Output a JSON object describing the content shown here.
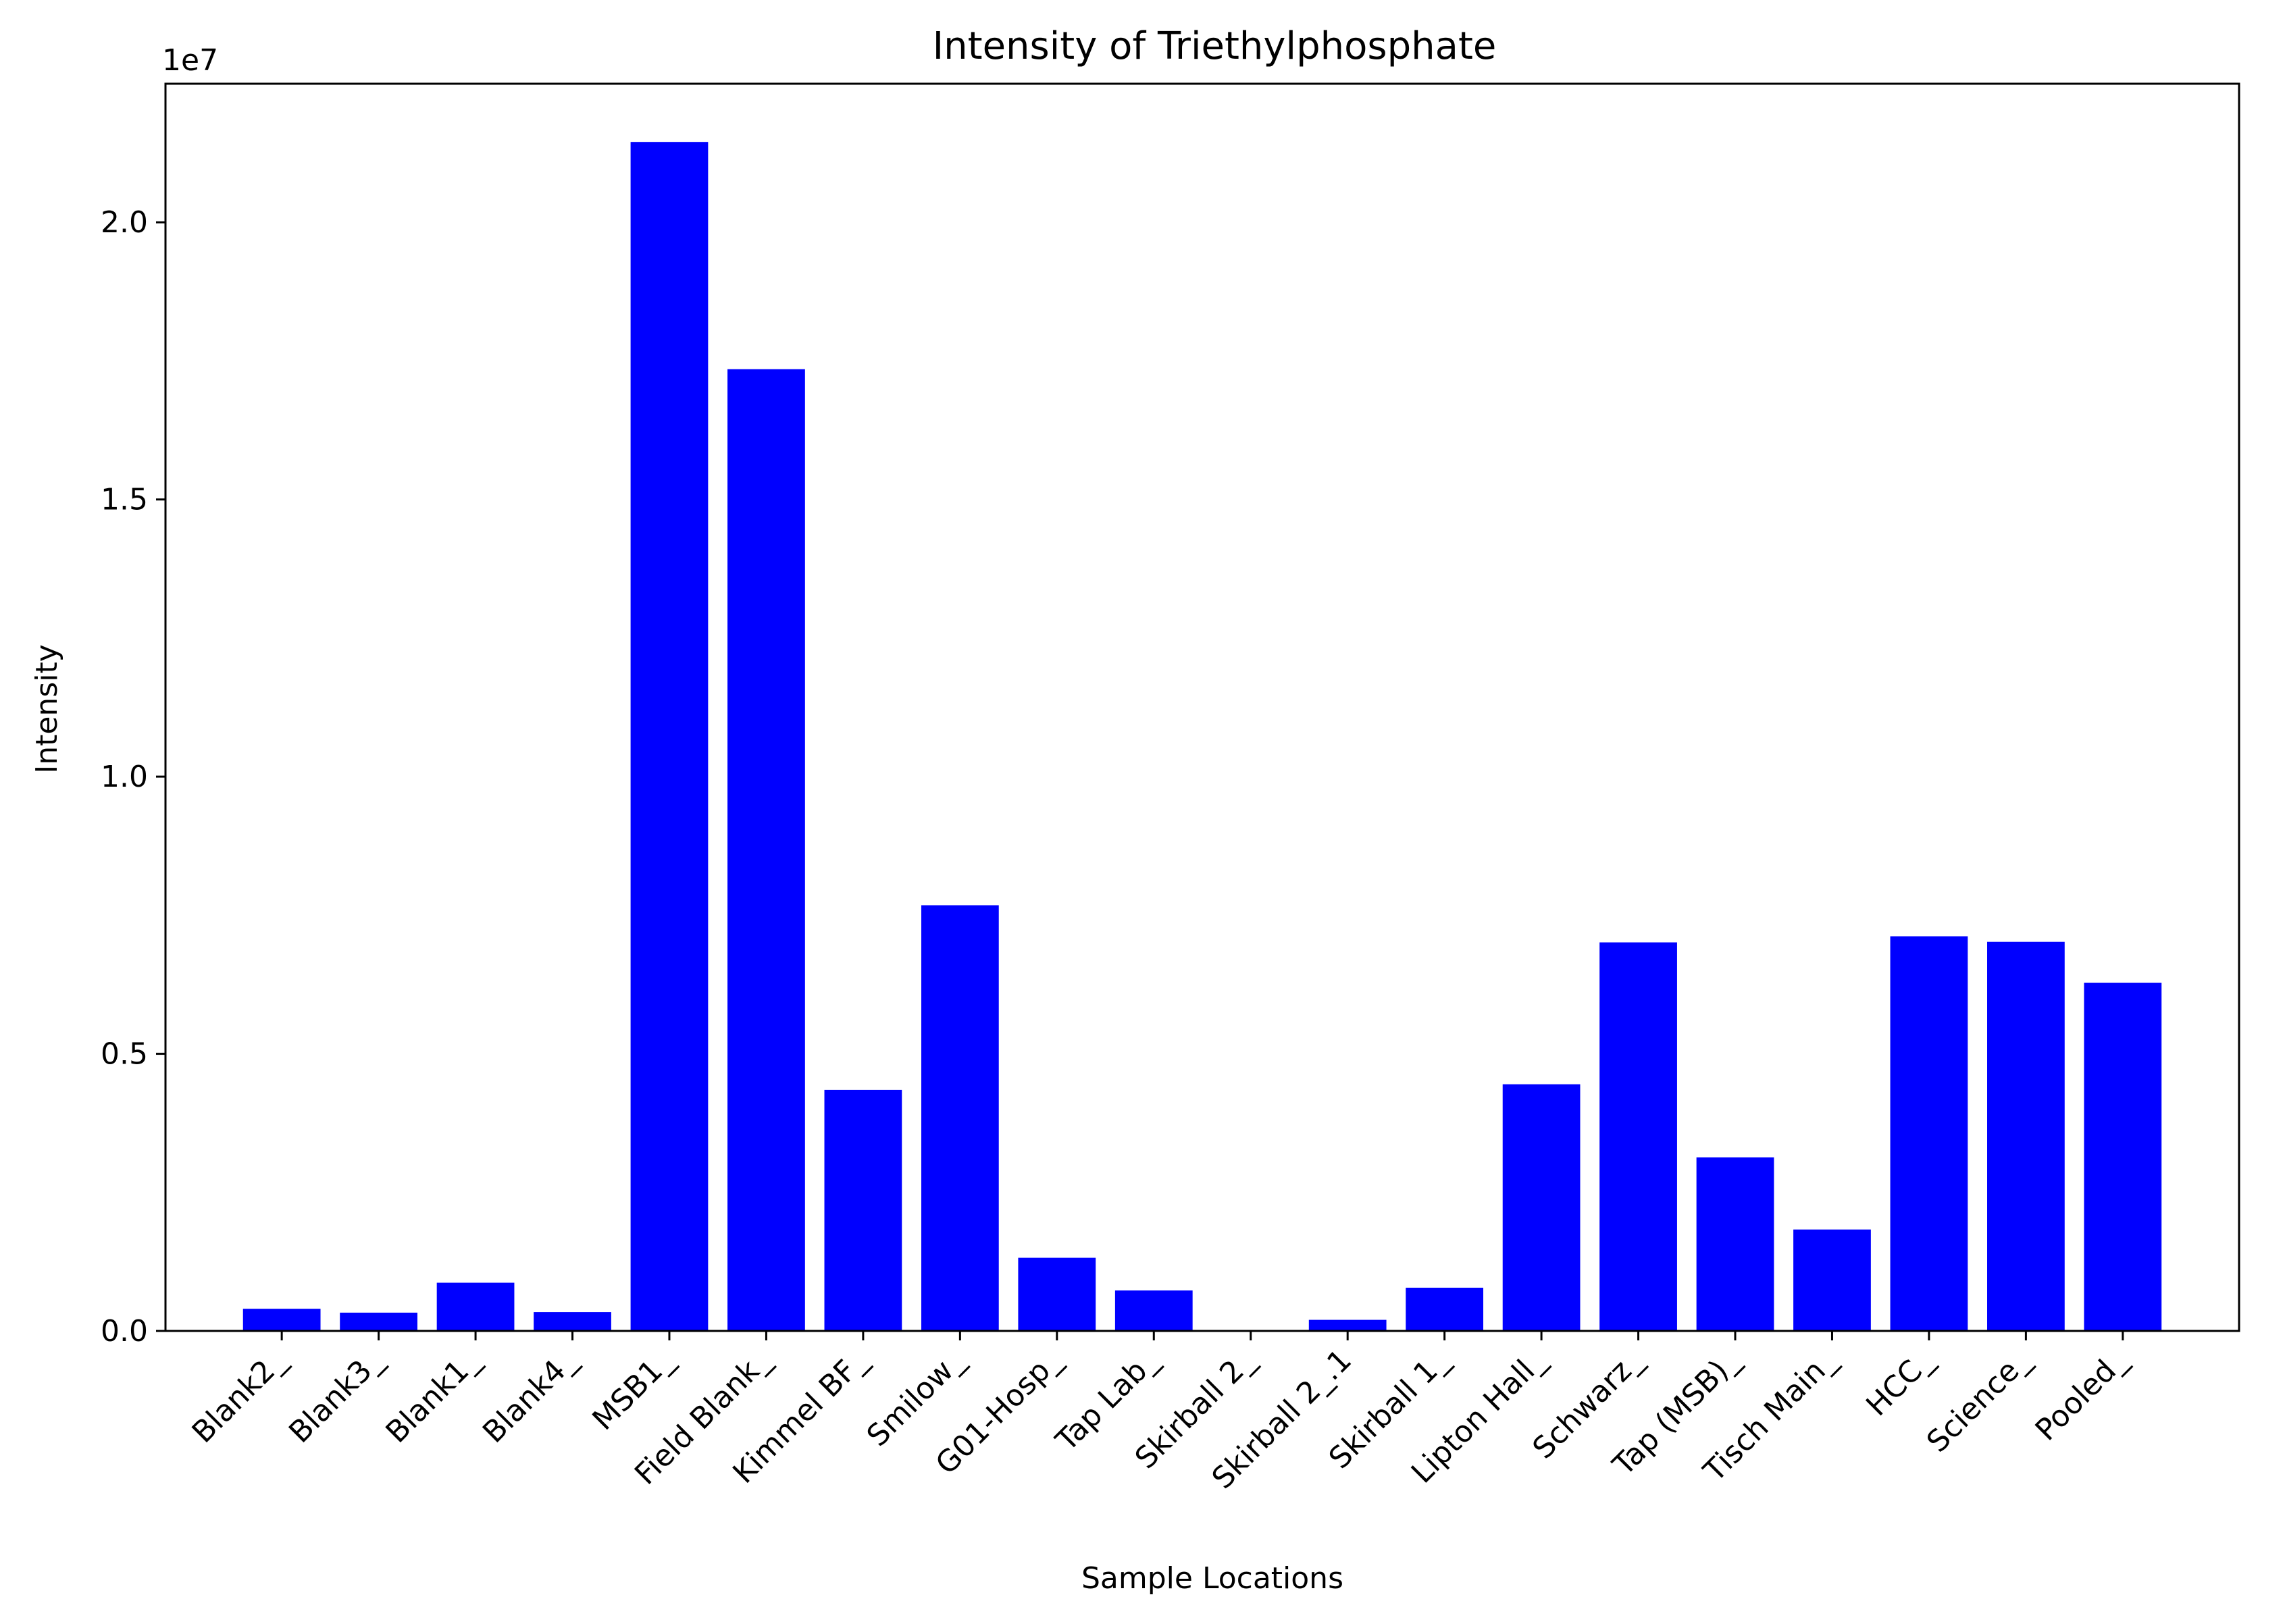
{
  "chart_data": {
    "type": "bar",
    "title": "Intensity of Triethylphosphate",
    "xlabel": "Sample Locations",
    "ylabel": "Intensity",
    "y_multiplier_label": "1e7",
    "y_scale": 10000000,
    "ylim": [
      0,
      22500000
    ],
    "yticks": [
      0,
      5000000,
      10000000,
      15000000,
      20000000
    ],
    "ytick_labels": [
      "0.0",
      "0.5",
      "1.0",
      "1.5",
      "2.0"
    ],
    "grid": false,
    "legend": "none",
    "bar_color": "#0000ff",
    "categories": [
      "Blank2_",
      "Blank3_",
      "Blank1_",
      "Blank4_",
      "MSB1_",
      "Field Blank_",
      "Kimmel BF_",
      "Smilow_",
      "G01-Hosp_",
      "Tap Lab_",
      "Skirball 2_",
      "Skirball 2_.1",
      "Skirball 1_",
      "Lipton Hall_",
      "Schwarz_",
      "Tap (MSB)_",
      "Tisch Main_",
      "HCC_",
      "Science_",
      "Pooled_"
    ],
    "values": [
      400000,
      330000,
      870000,
      340000,
      21450000,
      17350000,
      4350000,
      7680000,
      1320000,
      730000,
      0,
      200000,
      780000,
      4450000,
      7010000,
      3130000,
      1830000,
      7120000,
      7020000,
      6280000
    ]
  }
}
